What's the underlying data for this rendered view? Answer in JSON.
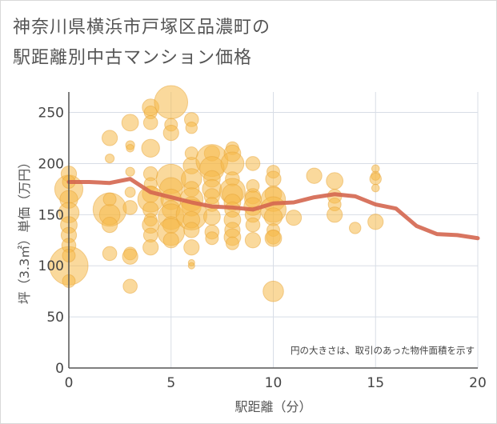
{
  "title": {
    "line1": "神奈川県横浜市戸塚区品濃町の",
    "line2": "駅距離別中古マンション価格"
  },
  "chart_data": {
    "type": "scatter",
    "title": "神奈川県横浜市戸塚区品濃町の駅距離別中古マンション価格",
    "xlabel": "駅距離（分）",
    "ylabel": "坪（3.3㎡）単価（万円）",
    "xlim": [
      0,
      20
    ],
    "ylim": [
      0,
      270
    ],
    "xticks": [
      0,
      5,
      10,
      15,
      20
    ],
    "yticks": [
      0,
      50,
      100,
      150,
      200,
      250
    ],
    "grid": true,
    "note": "円の大きさは、取引のあった物件面積を示す",
    "colors": {
      "bubble": "#f5b94a",
      "bubble_stroke": "#e8a53a",
      "line": "#d4664f",
      "grid": "#d8dde6",
      "tick": "#444444"
    },
    "bubbles": [
      {
        "x": 0,
        "y": 100,
        "s": 3.0
      },
      {
        "x": 0,
        "y": 175,
        "s": 2.2
      },
      {
        "x": 0,
        "y": 190,
        "s": 1.2
      },
      {
        "x": 0,
        "y": 165,
        "s": 1.4
      },
      {
        "x": 0,
        "y": 152,
        "s": 1.6
      },
      {
        "x": 0,
        "y": 140,
        "s": 1.3
      },
      {
        "x": 0,
        "y": 130,
        "s": 1.2
      },
      {
        "x": 0,
        "y": 120,
        "s": 1.1
      },
      {
        "x": 0,
        "y": 110,
        "s": 1.0
      },
      {
        "x": 0,
        "y": 85,
        "s": 1.0
      },
      {
        "x": 0,
        "y": 182,
        "s": 1.0
      },
      {
        "x": 2,
        "y": 225,
        "s": 1.2
      },
      {
        "x": 2,
        "y": 205,
        "s": 0.7
      },
      {
        "x": 2,
        "y": 155,
        "s": 2.6
      },
      {
        "x": 2,
        "y": 150,
        "s": 1.6
      },
      {
        "x": 2,
        "y": 140,
        "s": 1.2
      },
      {
        "x": 2,
        "y": 112,
        "s": 1.1
      },
      {
        "x": 2,
        "y": 165,
        "s": 1.0
      },
      {
        "x": 3,
        "y": 240,
        "s": 1.3
      },
      {
        "x": 3,
        "y": 218,
        "s": 0.7
      },
      {
        "x": 3,
        "y": 215,
        "s": 0.6
      },
      {
        "x": 3,
        "y": 192,
        "s": 0.7
      },
      {
        "x": 3,
        "y": 172,
        "s": 0.8
      },
      {
        "x": 3,
        "y": 157,
        "s": 1.1
      },
      {
        "x": 3,
        "y": 112,
        "s": 1.0
      },
      {
        "x": 3,
        "y": 109,
        "s": 1.2
      },
      {
        "x": 3,
        "y": 80,
        "s": 1.1
      },
      {
        "x": 4,
        "y": 255,
        "s": 1.3
      },
      {
        "x": 4,
        "y": 250,
        "s": 1.0
      },
      {
        "x": 4,
        "y": 240,
        "s": 1.1
      },
      {
        "x": 4,
        "y": 215,
        "s": 1.4
      },
      {
        "x": 4,
        "y": 190,
        "s": 1.1
      },
      {
        "x": 4,
        "y": 180,
        "s": 1.0
      },
      {
        "x": 4,
        "y": 170,
        "s": 1.3
      },
      {
        "x": 4,
        "y": 165,
        "s": 2.0
      },
      {
        "x": 4,
        "y": 155,
        "s": 1.2
      },
      {
        "x": 4,
        "y": 145,
        "s": 1.0
      },
      {
        "x": 4,
        "y": 140,
        "s": 1.3
      },
      {
        "x": 4,
        "y": 130,
        "s": 1.1
      },
      {
        "x": 4,
        "y": 118,
        "s": 1.2
      },
      {
        "x": 5,
        "y": 260,
        "s": 2.6
      },
      {
        "x": 5,
        "y": 238,
        "s": 1.0
      },
      {
        "x": 5,
        "y": 230,
        "s": 1.2
      },
      {
        "x": 5,
        "y": 185,
        "s": 2.3
      },
      {
        "x": 5,
        "y": 175,
        "s": 1.8
      },
      {
        "x": 5,
        "y": 165,
        "s": 1.6
      },
      {
        "x": 5,
        "y": 155,
        "s": 1.4
      },
      {
        "x": 5,
        "y": 148,
        "s": 2.0
      },
      {
        "x": 5,
        "y": 140,
        "s": 1.3
      },
      {
        "x": 5,
        "y": 133,
        "s": 2.1
      },
      {
        "x": 5,
        "y": 125,
        "s": 1.2
      },
      {
        "x": 6,
        "y": 243,
        "s": 1.1
      },
      {
        "x": 6,
        "y": 235,
        "s": 0.9
      },
      {
        "x": 6,
        "y": 210,
        "s": 1.0
      },
      {
        "x": 6,
        "y": 198,
        "s": 1.3
      },
      {
        "x": 6,
        "y": 185,
        "s": 1.6
      },
      {
        "x": 6,
        "y": 175,
        "s": 1.2
      },
      {
        "x": 6,
        "y": 165,
        "s": 1.8
      },
      {
        "x": 6,
        "y": 158,
        "s": 1.5
      },
      {
        "x": 6,
        "y": 150,
        "s": 2.4
      },
      {
        "x": 6,
        "y": 145,
        "s": 1.3
      },
      {
        "x": 6,
        "y": 135,
        "s": 1.2
      },
      {
        "x": 6,
        "y": 118,
        "s": 1.2
      },
      {
        "x": 6,
        "y": 103,
        "s": 0.5
      },
      {
        "x": 6,
        "y": 100,
        "s": 0.5
      },
      {
        "x": 7,
        "y": 210,
        "s": 1.2
      },
      {
        "x": 7,
        "y": 203,
        "s": 2.5
      },
      {
        "x": 7,
        "y": 195,
        "s": 1.9
      },
      {
        "x": 7,
        "y": 185,
        "s": 1.3
      },
      {
        "x": 7,
        "y": 175,
        "s": 1.5
      },
      {
        "x": 7,
        "y": 168,
        "s": 1.2
      },
      {
        "x": 7,
        "y": 160,
        "s": 1.1
      },
      {
        "x": 7,
        "y": 148,
        "s": 1.3
      },
      {
        "x": 7,
        "y": 133,
        "s": 1.1
      },
      {
        "x": 7,
        "y": 127,
        "s": 1.0
      },
      {
        "x": 8,
        "y": 215,
        "s": 1.0
      },
      {
        "x": 8,
        "y": 210,
        "s": 1.3
      },
      {
        "x": 8,
        "y": 200,
        "s": 1.8
      },
      {
        "x": 8,
        "y": 185,
        "s": 1.1
      },
      {
        "x": 8,
        "y": 173,
        "s": 2.0
      },
      {
        "x": 8,
        "y": 170,
        "s": 1.6
      },
      {
        "x": 8,
        "y": 162,
        "s": 1.3
      },
      {
        "x": 8,
        "y": 155,
        "s": 1.2
      },
      {
        "x": 8,
        "y": 145,
        "s": 1.3
      },
      {
        "x": 8,
        "y": 135,
        "s": 1.2
      },
      {
        "x": 8,
        "y": 128,
        "s": 1.3
      },
      {
        "x": 8,
        "y": 122,
        "s": 1.0
      },
      {
        "x": 9,
        "y": 200,
        "s": 1.1
      },
      {
        "x": 9,
        "y": 178,
        "s": 1.0
      },
      {
        "x": 9,
        "y": 168,
        "s": 1.2
      },
      {
        "x": 9,
        "y": 165,
        "s": 1.3
      },
      {
        "x": 9,
        "y": 158,
        "s": 1.4
      },
      {
        "x": 9,
        "y": 150,
        "s": 1.2
      },
      {
        "x": 9,
        "y": 140,
        "s": 1.1
      },
      {
        "x": 9,
        "y": 125,
        "s": 1.2
      },
      {
        "x": 10,
        "y": 192,
        "s": 1.0
      },
      {
        "x": 10,
        "y": 185,
        "s": 1.2
      },
      {
        "x": 10,
        "y": 170,
        "s": 1.3
      },
      {
        "x": 10,
        "y": 165,
        "s": 1.9
      },
      {
        "x": 10,
        "y": 155,
        "s": 2.0
      },
      {
        "x": 10,
        "y": 148,
        "s": 1.4
      },
      {
        "x": 10,
        "y": 135,
        "s": 1.0
      },
      {
        "x": 10,
        "y": 128,
        "s": 1.1
      },
      {
        "x": 10,
        "y": 127,
        "s": 1.3
      },
      {
        "x": 10,
        "y": 75,
        "s": 1.6
      },
      {
        "x": 11,
        "y": 147,
        "s": 1.2
      },
      {
        "x": 12,
        "y": 188,
        "s": 1.2
      },
      {
        "x": 13,
        "y": 183,
        "s": 1.3
      },
      {
        "x": 13,
        "y": 168,
        "s": 1.1
      },
      {
        "x": 13,
        "y": 160,
        "s": 1.0
      },
      {
        "x": 13,
        "y": 150,
        "s": 1.2
      },
      {
        "x": 14,
        "y": 137,
        "s": 0.9
      },
      {
        "x": 15,
        "y": 195,
        "s": 0.6
      },
      {
        "x": 15,
        "y": 188,
        "s": 0.7
      },
      {
        "x": 15,
        "y": 185,
        "s": 0.9
      },
      {
        "x": 15,
        "y": 176,
        "s": 0.6
      },
      {
        "x": 15,
        "y": 143,
        "s": 1.2
      }
    ],
    "trend": {
      "x": [
        0,
        1,
        2,
        3,
        4,
        5,
        6,
        7,
        8,
        9,
        10,
        11,
        12,
        13,
        14,
        15,
        16,
        17,
        18,
        19,
        20
      ],
      "y": [
        182,
        182,
        181,
        185,
        172,
        167,
        162,
        158,
        157,
        155,
        161,
        162,
        167,
        170,
        168,
        160,
        156,
        139,
        131,
        130,
        127
      ]
    }
  }
}
